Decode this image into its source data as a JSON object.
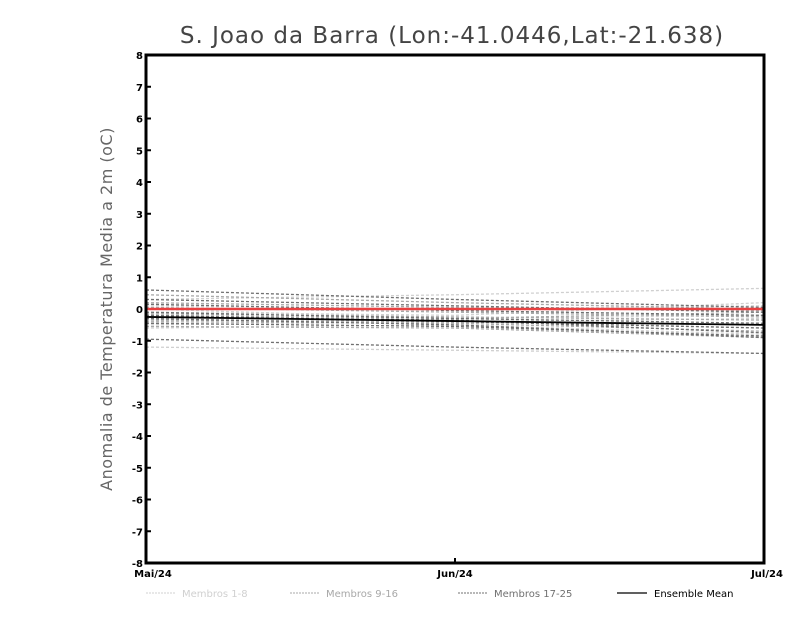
{
  "chart_data": {
    "type": "line",
    "title": "S. Joao da Barra (Lon:-41.0446,Lat:-21.638)",
    "xlabel": "",
    "ylabel": "Anomalia de Temperatura Media a 2m (oC)",
    "x": [
      "Mai/24",
      "Jun/24",
      "Jul/24"
    ],
    "ylim": [
      -8,
      8
    ],
    "yticks": [
      "-8",
      "-7",
      "-6",
      "-5",
      "-4",
      "-3",
      "-2",
      "-1",
      "0",
      "1",
      "2",
      "3",
      "4",
      "5",
      "6",
      "7",
      "8"
    ],
    "zero_line_color": "#e84040",
    "legend_placement": "bottom",
    "groups": [
      {
        "name": "Membros 1-8",
        "color": "#d0d0d0",
        "series": [
          [
            0.3,
            0.45,
            0.65
          ],
          [
            -0.1,
            -0.2,
            0.2
          ],
          [
            -0.5,
            -0.4,
            -0.3
          ],
          [
            -1.2,
            -1.3,
            -1.4
          ],
          [
            0.1,
            0.0,
            0.1
          ],
          [
            -0.3,
            -0.35,
            -0.6
          ],
          [
            -0.6,
            -0.5,
            -0.8
          ],
          [
            0.0,
            -0.3,
            -0.2
          ]
        ]
      },
      {
        "name": "Membros 9-16",
        "color": "#a8a8a8",
        "series": [
          [
            0.45,
            0.2,
            0.0
          ],
          [
            -0.2,
            -0.3,
            -0.1
          ],
          [
            -0.4,
            -0.45,
            -0.7
          ],
          [
            0.2,
            0.05,
            -0.05
          ],
          [
            -0.55,
            -0.6,
            -0.9
          ],
          [
            -0.15,
            -0.25,
            -0.35
          ],
          [
            -0.35,
            -0.4,
            -0.5
          ],
          [
            0.05,
            -0.1,
            -0.25
          ]
        ]
      },
      {
        "name": "Membros 17-25",
        "color": "#707070",
        "series": [
          [
            0.6,
            0.3,
            0.05
          ],
          [
            -0.95,
            -1.2,
            -1.4
          ],
          [
            0.3,
            0.1,
            -0.1
          ],
          [
            -0.25,
            -0.35,
            -0.75
          ],
          [
            -0.45,
            -0.55,
            -0.85
          ],
          [
            -0.1,
            -0.3,
            -0.45
          ],
          [
            0.15,
            -0.05,
            -0.2
          ],
          [
            -0.3,
            -0.5,
            -0.9
          ],
          [
            -0.2,
            -0.4,
            -0.6
          ]
        ]
      }
    ],
    "ensemble_mean": {
      "name": "Ensemble Mean",
      "color": "#000000",
      "values": [
        -0.25,
        -0.38,
        -0.5
      ]
    }
  }
}
